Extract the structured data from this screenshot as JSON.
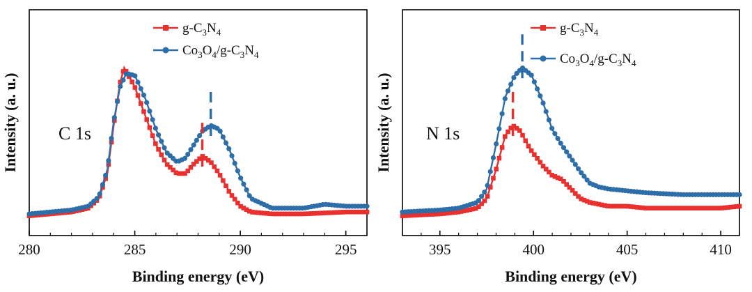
{
  "chart_data": [
    {
      "type": "line",
      "panel_label": "C 1s",
      "xlabel": "Binding energy (eV)",
      "ylabel": "Intensity (a. u.)",
      "xlim": [
        280,
        296
      ],
      "ylim": [
        0,
        100
      ],
      "x_ticks": [
        280,
        285,
        290,
        295
      ],
      "legend_position": "top-right",
      "marker_positions": [
        {
          "series": "g-C3N4",
          "x": 288.2
        },
        {
          "series": "Co3O4/g-C3N4",
          "x": 288.6
        }
      ],
      "series": [
        {
          "name": "g-C3N4",
          "legend": {
            "base": "g-C",
            "parts": [
              [
                "3",
                "N"
              ],
              [
                "4",
                ""
              ]
            ]
          },
          "color": "#e8302e",
          "marker": "square",
          "points": [
            [
              280,
              3
            ],
            [
              281,
              4
            ],
            [
              282,
              5
            ],
            [
              282.8,
              7
            ],
            [
              283.3,
              12
            ],
            [
              283.7,
              25
            ],
            [
              284,
              50
            ],
            [
              284.3,
              72
            ],
            [
              284.5,
              80
            ],
            [
              284.7,
              76
            ],
            [
              285,
              70
            ],
            [
              285.5,
              55
            ],
            [
              286,
              40
            ],
            [
              286.5,
              30
            ],
            [
              287,
              25
            ],
            [
              287.4,
              25
            ],
            [
              287.8,
              30
            ],
            [
              288.2,
              34
            ],
            [
              288.6,
              31
            ],
            [
              289,
              25
            ],
            [
              289.5,
              15
            ],
            [
              290,
              8
            ],
            [
              290.5,
              5
            ],
            [
              291.5,
              4
            ],
            [
              293,
              4
            ],
            [
              295,
              5
            ],
            [
              296,
              5
            ]
          ]
        },
        {
          "name": "Co3O4/g-C3N4",
          "legend": {
            "base": "Co",
            "parts": [
              [
                "3",
                "O"
              ],
              [
                "4",
                "/g-C"
              ],
              [
                "3",
                "N"
              ],
              [
                "4",
                ""
              ]
            ]
          },
          "color": "#2e6ea8",
          "marker": "circle",
          "points": [
            [
              280,
              4
            ],
            [
              281,
              5
            ],
            [
              282,
              6
            ],
            [
              282.8,
              8
            ],
            [
              283.3,
              13
            ],
            [
              283.7,
              27
            ],
            [
              284,
              52
            ],
            [
              284.3,
              70
            ],
            [
              284.6,
              77
            ],
            [
              285,
              76
            ],
            [
              285.5,
              64
            ],
            [
              286,
              48
            ],
            [
              286.5,
              36
            ],
            [
              287,
              31
            ],
            [
              287.4,
              33
            ],
            [
              287.8,
              40
            ],
            [
              288.2,
              47
            ],
            [
              288.6,
              50
            ],
            [
              289,
              48
            ],
            [
              289.5,
              37
            ],
            [
              290,
              23
            ],
            [
              290.5,
              12
            ],
            [
              291.5,
              7
            ],
            [
              293,
              7
            ],
            [
              294,
              9
            ],
            [
              295,
              8
            ],
            [
              296,
              8
            ]
          ]
        }
      ]
    },
    {
      "type": "line",
      "panel_label": "N 1s",
      "xlabel": "Binding energy (eV)",
      "ylabel": "Intensity (a. u.)",
      "xlim": [
        393,
        411
      ],
      "ylim": [
        0,
        100
      ],
      "x_ticks": [
        395,
        400,
        405,
        410
      ],
      "legend_position": "top-right",
      "marker_positions": [
        {
          "series": "g-C3N4",
          "x": 398.9
        },
        {
          "series": "Co3O4/g-C3N4",
          "x": 399.4
        }
      ],
      "series": [
        {
          "name": "g-C3N4",
          "legend": {
            "base": "g-C",
            "parts": [
              [
                "3",
                "N"
              ],
              [
                "4",
                ""
              ]
            ]
          },
          "color": "#e8302e",
          "marker": "square",
          "points": [
            [
              393,
              3
            ],
            [
              395,
              4
            ],
            [
              396,
              5
            ],
            [
              397,
              7
            ],
            [
              397.5,
              12
            ],
            [
              398,
              27
            ],
            [
              398.5,
              45
            ],
            [
              398.9,
              50
            ],
            [
              399.3,
              47
            ],
            [
              399.8,
              38
            ],
            [
              400.5,
              29
            ],
            [
              401,
              24
            ],
            [
              401.5,
              22
            ],
            [
              402,
              17
            ],
            [
              402.5,
              12
            ],
            [
              403,
              10
            ],
            [
              404,
              8
            ],
            [
              405,
              8
            ],
            [
              406,
              7
            ],
            [
              408,
              7
            ],
            [
              410,
              7
            ],
            [
              411,
              8
            ]
          ]
        },
        {
          "name": "Co3O4/g-C3N4",
          "legend": {
            "base": "Co",
            "parts": [
              [
                "3",
                "O"
              ],
              [
                "4",
                "/g-C"
              ],
              [
                "3",
                "N"
              ],
              [
                "4",
                ""
              ]
            ]
          },
          "color": "#2e6ea8",
          "marker": "circle",
          "points": [
            [
              393,
              5
            ],
            [
              395,
              6
            ],
            [
              396,
              7
            ],
            [
              397,
              10
            ],
            [
              397.5,
              17
            ],
            [
              398,
              40
            ],
            [
              398.5,
              65
            ],
            [
              399,
              76
            ],
            [
              399.4,
              80
            ],
            [
              399.9,
              76
            ],
            [
              400.5,
              62
            ],
            [
              401,
              48
            ],
            [
              401.5,
              40
            ],
            [
              402,
              33
            ],
            [
              402.5,
              26
            ],
            [
              403,
              20
            ],
            [
              403.5,
              18
            ],
            [
              404,
              17
            ],
            [
              405,
              16
            ],
            [
              406,
              15
            ],
            [
              408,
              14
            ],
            [
              410,
              14
            ],
            [
              411,
              14
            ]
          ]
        }
      ]
    }
  ]
}
